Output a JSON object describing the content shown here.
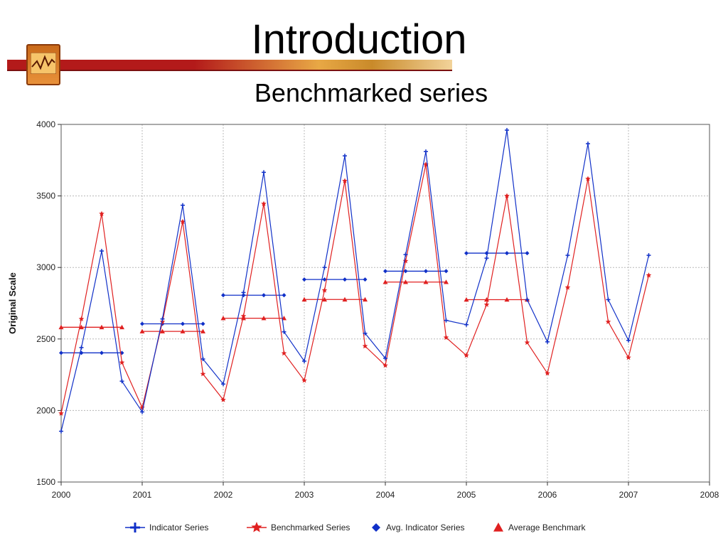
{
  "slide": {
    "title": "Introduction",
    "subtitle": "Benchmarked series"
  },
  "colors": {
    "indicator": "#1030c8",
    "benchmarked": "#e02020",
    "grid": "#b8b8b8",
    "band_red": "#b31a1a",
    "band_gold": "#e8a845"
  },
  "chart_data": {
    "type": "line",
    "ylabel": "Original Scale",
    "xlabel": "",
    "ylim": [
      1500,
      4000
    ],
    "xlim": [
      2000,
      2008
    ],
    "yticks": [
      1500,
      2000,
      2500,
      3000,
      3500,
      4000
    ],
    "xticks": [
      2000,
      2001,
      2002,
      2003,
      2004,
      2005,
      2006,
      2007,
      2008
    ],
    "grid": true,
    "legend_position": "bottom",
    "legend": [
      "Indicator Series",
      "Benchmarked Series",
      "Avg. Indicator Series",
      "Average Benchmark"
    ],
    "x": [
      2000,
      2000.25,
      2000.5,
      2000.75,
      2001,
      2001.25,
      2001.5,
      2001.75,
      2002,
      2002.25,
      2002.5,
      2002.75,
      2003,
      2003.25,
      2003.5,
      2003.75,
      2004,
      2004.25,
      2004.5,
      2004.75,
      2005,
      2005.25,
      2005.5,
      2005.75,
      2006,
      2006.25,
      2006.5,
      2006.75,
      2007,
      2007.25
    ],
    "series": [
      {
        "name": "Indicator Series",
        "values": [
          1855,
          2440,
          3115,
          2205,
          1990,
          2640,
          3435,
          2360,
          2185,
          2825,
          3665,
          2550,
          2345,
          3000,
          3780,
          2540,
          2365,
          3090,
          3810,
          2630,
          2600,
          3065,
          3960,
          2775,
          2480,
          3085,
          3865,
          2775,
          2490,
          3085
        ]
      },
      {
        "name": "Benchmarked Series",
        "values": [
          1980,
          2640,
          3375,
          2335,
          2020,
          2620,
          3320,
          2255,
          2075,
          2660,
          3445,
          2400,
          2210,
          2840,
          3605,
          2450,
          2315,
          3045,
          3720,
          2510,
          2385,
          2740,
          3500,
          2475,
          2260,
          2860,
          3620,
          2620,
          2370,
          2945
        ]
      },
      {
        "name": "Avg. Indicator Series",
        "segments": [
          {
            "x": [
              2000,
              2000.25,
              2000.5,
              2000.75
            ],
            "value": 2403
          },
          {
            "x": [
              2001,
              2001.25,
              2001.5,
              2001.75
            ],
            "value": 2606
          },
          {
            "x": [
              2002,
              2002.25,
              2002.5,
              2002.75
            ],
            "value": 2806
          },
          {
            "x": [
              2003,
              2003.25,
              2003.5,
              2003.75
            ],
            "value": 2916
          },
          {
            "x": [
              2004,
              2004.25,
              2004.5,
              2004.75
            ],
            "value": 2974
          },
          {
            "x": [
              2005,
              2005.25,
              2005.5,
              2005.75
            ],
            "value": 3100
          }
        ]
      },
      {
        "name": "Average Benchmark",
        "segments": [
          {
            "x": [
              2000,
              2000.25,
              2000.5,
              2000.75
            ],
            "value": 2582
          },
          {
            "x": [
              2001,
              2001.25,
              2001.5,
              2001.75
            ],
            "value": 2553
          },
          {
            "x": [
              2002,
              2002.25,
              2002.5,
              2002.75
            ],
            "value": 2645
          },
          {
            "x": [
              2003,
              2003.25,
              2003.5,
              2003.75
            ],
            "value": 2776
          },
          {
            "x": [
              2004,
              2004.25,
              2004.5,
              2004.75
            ],
            "value": 2898
          },
          {
            "x": [
              2005,
              2005.25,
              2005.5,
              2005.75
            ],
            "value": 2775
          }
        ]
      }
    ]
  }
}
